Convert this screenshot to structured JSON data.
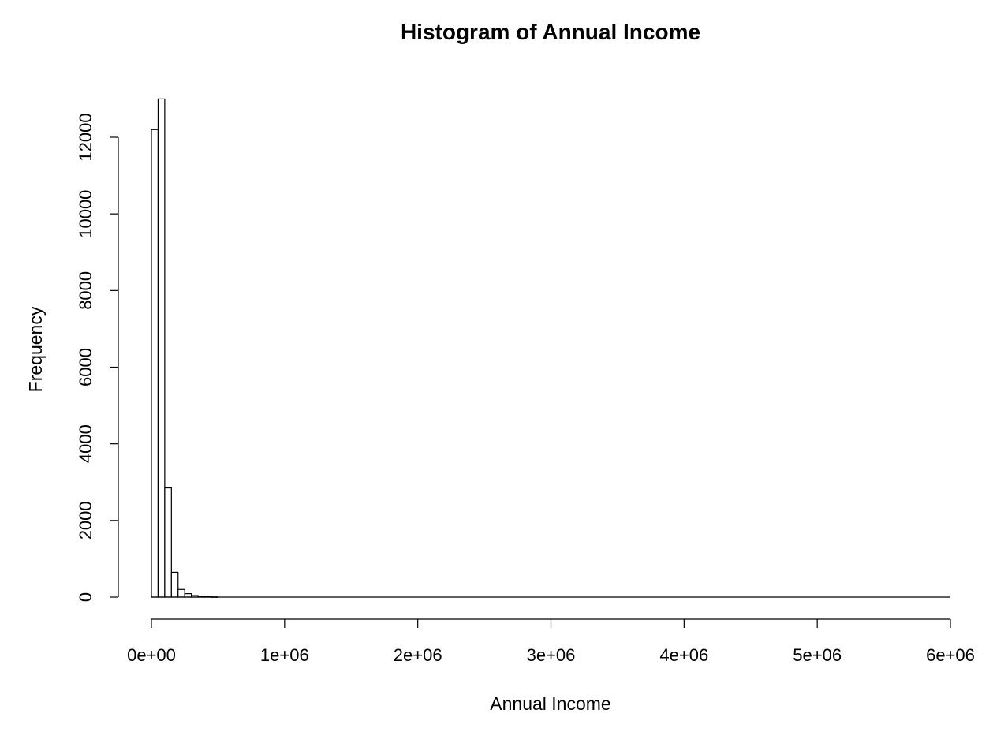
{
  "chart_data": {
    "type": "bar",
    "title": "Histogram of Annual Income",
    "xlabel": "Annual Income",
    "ylabel": "Frequency",
    "xlim": [
      0,
      6000000
    ],
    "ylim": [
      0,
      12000
    ],
    "bin_width": 50000,
    "x_ticks": [
      0,
      1000000,
      2000000,
      3000000,
      4000000,
      5000000,
      6000000
    ],
    "x_tick_labels": [
      "0e+00",
      "1e+06",
      "2e+06",
      "3e+06",
      "4e+06",
      "5e+06",
      "6e+06"
    ],
    "y_ticks": [
      0,
      2000,
      4000,
      6000,
      8000,
      10000,
      12000
    ],
    "y_tick_labels": [
      "0",
      "2000",
      "4000",
      "6000",
      "8000",
      "10000",
      "12000"
    ],
    "bins_start": [
      0,
      50000,
      100000,
      150000,
      200000,
      250000,
      300000,
      350000,
      400000,
      450000
    ],
    "values": [
      12200,
      13000,
      2850,
      650,
      200,
      90,
      40,
      20,
      10,
      5
    ],
    "grid": false,
    "legend": "none"
  }
}
